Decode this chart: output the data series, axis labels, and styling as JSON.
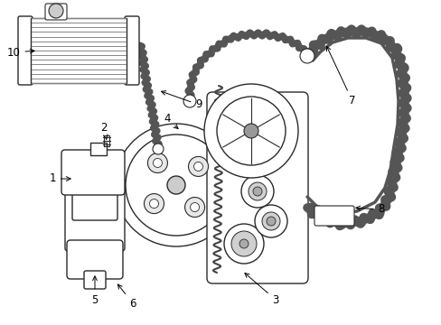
{
  "background_color": "#ffffff",
  "line_color": "#2a2a2a",
  "figure_width": 4.89,
  "figure_height": 3.6,
  "dpi": 100,
  "label_fontsize": 8.5,
  "label_color": "#000000",
  "labels": {
    "5": [
      0.155,
      0.895,
      0.185,
      0.855
    ],
    "6": [
      0.23,
      0.9,
      0.21,
      0.86
    ],
    "1": [
      0.105,
      0.68,
      0.135,
      0.66
    ],
    "2": [
      0.175,
      0.595,
      0.185,
      0.635
    ],
    "4": [
      0.275,
      0.57,
      0.285,
      0.61
    ],
    "3": [
      0.44,
      0.895,
      0.395,
      0.87
    ],
    "8": [
      0.685,
      0.72,
      0.65,
      0.74
    ],
    "7": [
      0.51,
      0.58,
      0.46,
      0.545
    ],
    "9": [
      0.3,
      0.62,
      0.315,
      0.66
    ],
    "10": [
      0.062,
      0.485,
      0.1,
      0.485
    ]
  }
}
